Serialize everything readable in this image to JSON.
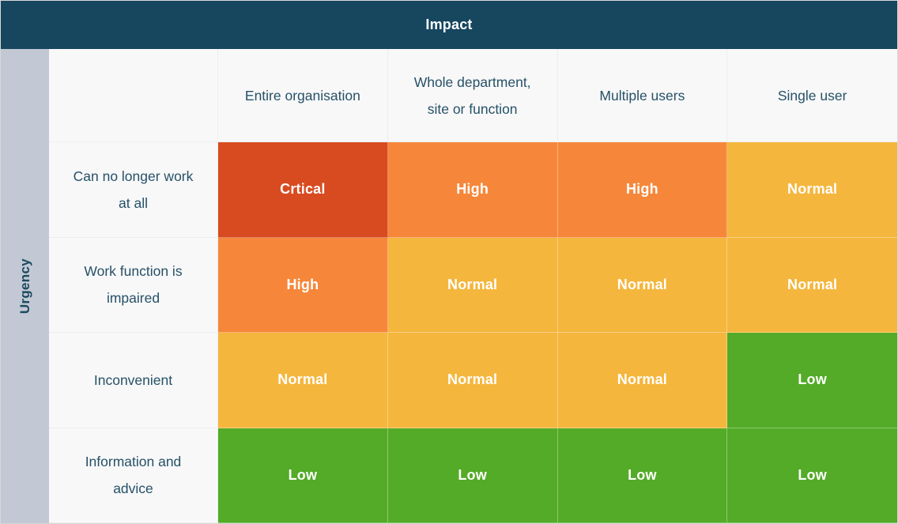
{
  "chart_data": {
    "type": "heatmap",
    "x_axis_label": "Impact",
    "y_axis_label": "Urgency",
    "columns": [
      "Entire organisation",
      "Whole department, site or function",
      "Multiple users",
      "Single user"
    ],
    "rows": [
      "Can no longer work at all",
      "Work function is impaired",
      "Inconvenient",
      "Information and advice"
    ],
    "cells": [
      [
        "Crtical",
        "High",
        "High",
        "Normal"
      ],
      [
        "High",
        "Normal",
        "Normal",
        "Normal"
      ],
      [
        "Normal",
        "Normal",
        "Normal",
        "Low"
      ],
      [
        "Low",
        "Low",
        "Low",
        "Low"
      ]
    ],
    "levels": [
      [
        "critical",
        "high",
        "high",
        "normal"
      ],
      [
        "high",
        "normal",
        "normal",
        "normal"
      ],
      [
        "normal",
        "normal",
        "normal",
        "low"
      ],
      [
        "low",
        "low",
        "low",
        "low"
      ]
    ],
    "colors": {
      "critical": "#d84b20",
      "high": "#f6873a",
      "normal": "#f5b63d",
      "low": "#53ab27"
    },
    "legend_position": "none",
    "grid": false
  },
  "theme": {
    "impact_bar_bg": "#17465f",
    "impact_bar_text": "#ffffff",
    "urgency_bar_bg": "#c2c8d4",
    "urgency_bar_text": "#1d4a5f",
    "header_cell_bg": "#f8f8f9",
    "header_text": "#265166",
    "cell_text": "#ffffff",
    "outer_border": "#d8d8d8",
    "light_divider": "#ededed"
  }
}
